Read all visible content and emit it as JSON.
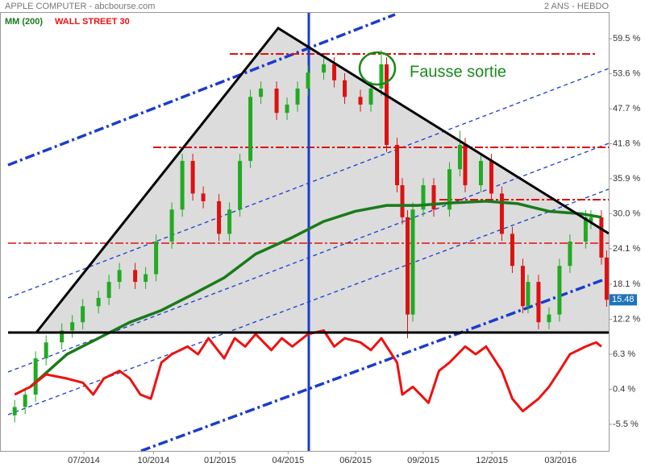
{
  "chart_data": {
    "type": "candlestick",
    "title": "APPLE COMPUTER - abcbourse.com",
    "subtitle": "2 ANS - HEBDO",
    "annotations": [
      "Fausse sortie"
    ],
    "last_price": 15.48,
    "up_color": "#22aa22",
    "down_color": "#dd1111",
    "candles": {
      "x": [
        0,
        2,
        4,
        6,
        9,
        11,
        13,
        16,
        18,
        20,
        23,
        25,
        27,
        30,
        32,
        34,
        36,
        39,
        41,
        43,
        45,
        47,
        50,
        52,
        54,
        56,
        59,
        61,
        63,
        66,
        68,
        70,
        71,
        73,
        74,
        75,
        76,
        78,
        80,
        83,
        85,
        86,
        89,
        91,
        93,
        95,
        97,
        98,
        100,
        102,
        104,
        106,
        109,
        110,
        112,
        113
      ],
      "open": [
        -4.0,
        -2.6,
        -0.5,
        5.6,
        8.3,
        10.3,
        11.7,
        14.4,
        15.8,
        18.5,
        20.5,
        18.5,
        19.8,
        25.3,
        30.7,
        38.9,
        33.4,
        32.1,
        26.6,
        30.7,
        38.9,
        49.7,
        51.1,
        47.0,
        48.4,
        51.1,
        53.8,
        55.2,
        52.5,
        49.7,
        48.4,
        51.1,
        55.2,
        41.6,
        34.8,
        29.4,
        13.0,
        30.7,
        34.8,
        30.7,
        37.5,
        41.6,
        34.8,
        38.9,
        33.4,
        26.6,
        21.2,
        14.4,
        18.5,
        11.7,
        13.0,
        21.2,
        25.3,
        28.6,
        29.4,
        22.6
      ],
      "high": [
        -1.4,
        0.7,
        6.8,
        9.5,
        11.5,
        12.9,
        15.6,
        17.0,
        19.7,
        21.7,
        21.7,
        21.0,
        26.5,
        31.9,
        40.1,
        40.1,
        34.6,
        33.3,
        31.9,
        40.1,
        50.9,
        52.3,
        52.3,
        49.6,
        52.3,
        55.0,
        56.4,
        56.4,
        53.7,
        50.9,
        52.3,
        57.5,
        56.4,
        42.8,
        36.0,
        30.6,
        31.9,
        36.0,
        36.0,
        38.7,
        44.0,
        42.8,
        40.1,
        40.1,
        34.6,
        27.8,
        22.4,
        19.7,
        19.7,
        14.2,
        22.4,
        26.5,
        30.6,
        30.6,
        30.6,
        23.8
      ],
      "low": [
        -5.2,
        -3.8,
        -1.7,
        4.4,
        7.1,
        9.1,
        10.5,
        13.2,
        14.6,
        17.3,
        17.3,
        17.3,
        18.6,
        24.1,
        29.5,
        32.2,
        30.9,
        25.4,
        25.4,
        29.5,
        37.7,
        48.5,
        45.8,
        45.8,
        47.2,
        49.9,
        52.6,
        51.3,
        48.5,
        47.2,
        47.2,
        49.9,
        40.4,
        33.6,
        28.2,
        9.0,
        11.8,
        29.5,
        29.5,
        29.5,
        36.3,
        33.6,
        33.6,
        32.2,
        25.4,
        20.0,
        13.2,
        13.2,
        10.5,
        10.5,
        11.8,
        20.0,
        24.1,
        27.4,
        21.4,
        14.3
      ],
      "close": [
        -2.6,
        -0.5,
        5.6,
        8.3,
        10.3,
        11.7,
        14.4,
        15.8,
        18.5,
        20.5,
        18.5,
        19.8,
        25.3,
        30.7,
        38.9,
        33.4,
        32.1,
        26.6,
        30.7,
        38.9,
        49.7,
        51.1,
        47.0,
        48.4,
        51.1,
        53.8,
        55.2,
        52.5,
        49.7,
        48.4,
        51.1,
        55.2,
        41.6,
        34.8,
        29.4,
        13.0,
        30.7,
        34.8,
        30.7,
        37.5,
        41.6,
        34.8,
        38.9,
        33.4,
        26.6,
        21.2,
        14.4,
        18.5,
        11.7,
        13.0,
        21.2,
        25.3,
        29.4,
        29.4,
        22.6,
        15.48
      ]
    },
    "series": [
      {
        "name": "MM (200)",
        "color": "#1a7a1a",
        "x": [
          3,
          10,
          16,
          22,
          28,
          34,
          40,
          46,
          53,
          59,
          65,
          71,
          77,
          83,
          90,
          96,
          102,
          108,
          112
        ],
        "values": [
          0.8,
          6.3,
          9.0,
          11.7,
          13.7,
          16.4,
          19.2,
          23.2,
          26.0,
          28.7,
          30.4,
          31.4,
          31.4,
          31.8,
          32.1,
          31.7,
          30.4,
          30.0,
          29.4
        ]
      },
      {
        "name": "WALL STREET 30",
        "color": "#ee1111",
        "x": [
          0,
          3,
          6,
          10,
          13,
          15,
          17,
          20,
          22,
          24,
          26,
          28,
          30,
          33,
          35,
          37,
          40,
          42,
          44,
          46,
          49,
          51,
          53,
          56,
          59,
          61,
          63,
          66,
          68,
          70,
          73,
          74,
          76,
          79,
          81,
          83,
          86,
          88,
          90,
          93,
          95,
          97,
          100,
          102,
          104,
          106,
          109,
          111,
          112
        ],
        "values": [
          -0.5,
          0.8,
          2.9,
          2.2,
          1.5,
          -0.5,
          2.2,
          3.5,
          2.2,
          -0.5,
          -1.2,
          4.9,
          6.3,
          7.6,
          6.3,
          9.0,
          5.6,
          9.0,
          7.6,
          9.7,
          7.0,
          9.0,
          7.6,
          9.7,
          10.3,
          7.6,
          9.0,
          8.3,
          7.0,
          9.0,
          4.9,
          -0.5,
          0.8,
          -1.9,
          3.5,
          4.9,
          7.6,
          6.3,
          7.6,
          3.5,
          -1.2,
          -3.3,
          -1.2,
          0.8,
          3.5,
          6.3,
          7.6,
          8.3,
          7.6
        ]
      }
    ],
    "xlim": [
      -2.8,
      113.4
    ],
    "xticks": [
      {
        "value": 13.2,
        "label": "07/2014"
      },
      {
        "value": 26.5,
        "label": "10/2014"
      },
      {
        "value": 39.2,
        "label": "01/2015"
      },
      {
        "value": 52.2,
        "label": "04/2015"
      },
      {
        "value": 65.1,
        "label": "06/2015"
      },
      {
        "value": 78.0,
        "label": "09/2015"
      },
      {
        "value": 91.1,
        "label": "12/2015"
      },
      {
        "value": 104.2,
        "label": "03/2016"
      }
    ],
    "ylim": [
      -10,
      64
    ],
    "yticks": [
      {
        "value": 59.5,
        "label": "59.5 %"
      },
      {
        "value": 53.6,
        "label": "53.6 %"
      },
      {
        "value": 47.7,
        "label": "47.7 %"
      },
      {
        "value": 41.8,
        "label": "41.8 %"
      },
      {
        "value": 35.9,
        "label": "35.9 %"
      },
      {
        "value": 30.0,
        "label": "30.0 %"
      },
      {
        "value": 24.1,
        "label": "24.1 %"
      },
      {
        "value": 18.1,
        "label": "18.1 %"
      },
      {
        "value": 12.2,
        "label": "12.2 %"
      },
      {
        "value": 6.3,
        "label": "6.3 %"
      },
      {
        "value": 0.4,
        "label": "0.4 %"
      },
      {
        "value": -5.5,
        "label": "-5.5 %"
      }
    ]
  }
}
